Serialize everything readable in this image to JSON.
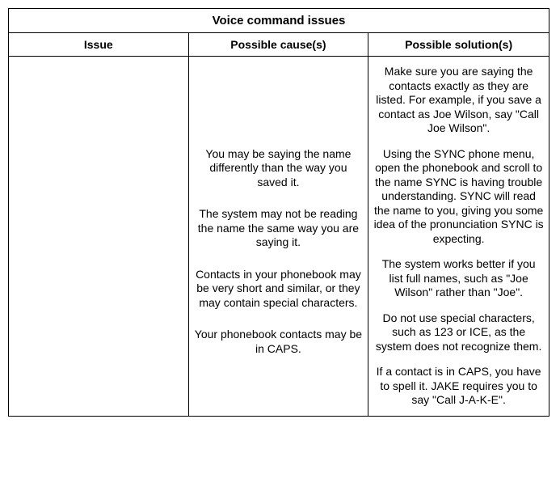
{
  "title": "Voice command issues",
  "headers": {
    "issue": "Issue",
    "cause": "Possible cause(s)",
    "solution": "Possible solution(s)"
  },
  "issue": "",
  "causes": {
    "c1": "You may be saying the name differently than the way you saved it.",
    "c2": "The system may not be reading the name the same way you are saying it.",
    "c3": "Contacts in your phonebook may be very short and similar, or they may contain special characters.",
    "c4": "Your phonebook contacts may be in CAPS."
  },
  "solutions": {
    "s1": "Make sure you are saying the contacts exactly as they are listed. For example, if you save a contact as Joe Wilson, say \"Call Joe Wilson\".",
    "s2": "Using the SYNC phone menu, open the phonebook and scroll to the name SYNC is having trouble understanding. SYNC will read the name to you, giving you some idea of the pronunciation SYNC is expecting.",
    "s3": "The system works better if you list full names, such as \"Joe Wilson\" rather than \"Joe\".",
    "s4": "Do not use special characters, such as 123 or ICE, as the system does not recognize them.",
    "s5": "If a contact is in CAPS, you have to spell it. JAKE requires you to say \"Call J-A-K-E\"."
  }
}
